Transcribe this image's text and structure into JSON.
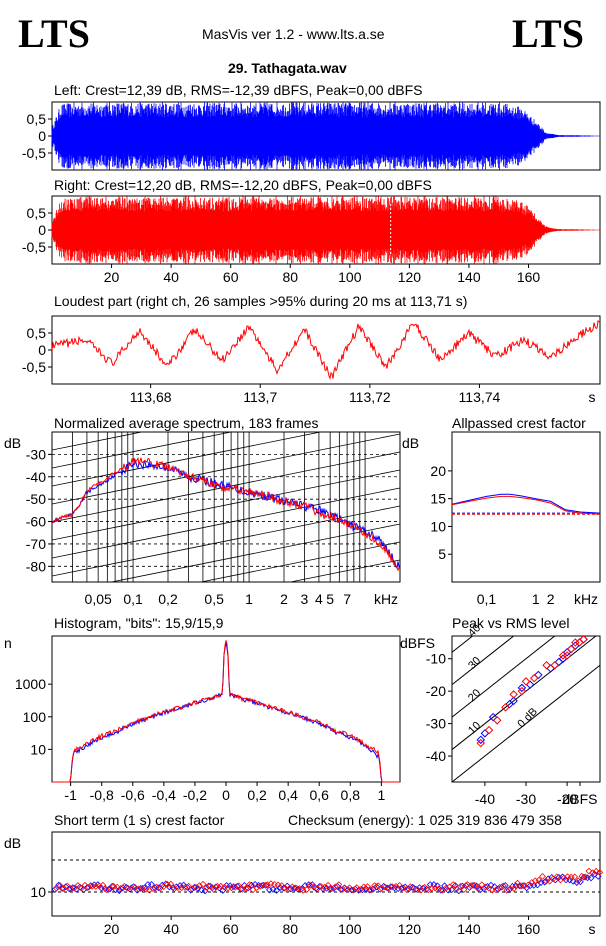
{
  "header": {
    "logo_left": "LTS",
    "logo_right": "LTS",
    "app_title": "MasVis ver 1.2 - www.lts.a.se",
    "file_name": "29. Tathagata.wav"
  },
  "colors": {
    "left": "#0000ff",
    "right": "#ff0000",
    "axis": "#000000"
  },
  "chart_data": [
    {
      "id": "left",
      "type": "area",
      "title": "Left: Crest=12,39 dB, RMS=-12,39 dBFS, Peak=0,00 dBFS",
      "ylabel": "",
      "xlabel": "",
      "yticks": [
        "0,5",
        "0",
        "-0,5"
      ],
      "ylim": [
        -1,
        1
      ],
      "xlim": [
        0,
        184
      ],
      "envelope": {
        "x": [
          0,
          3,
          10,
          30,
          60,
          90,
          120,
          150,
          158,
          163,
          166,
          170,
          184
        ],
        "amp": [
          0.25,
          0.95,
          1,
          1,
          1,
          1,
          1,
          1,
          0.85,
          0.4,
          0.1,
          0.03,
          0.01
        ]
      },
      "series_color": "#0000ff"
    },
    {
      "id": "right",
      "type": "area",
      "title": "Right: Crest=12,20 dB, RMS=-12,20 dBFS, Peak=0,00 dBFS",
      "ylabel": "",
      "xlabel": "s",
      "yticks": [
        "0,5",
        "0",
        "-0,5"
      ],
      "xticks": [
        "20",
        "40",
        "60",
        "80",
        "100",
        "120",
        "140",
        "160"
      ],
      "x_label_values": [
        20,
        40,
        60,
        80,
        100,
        120,
        140,
        160
      ],
      "ylim": [
        -1,
        1
      ],
      "xlim": [
        0,
        184
      ],
      "marker_x": 113.71,
      "envelope": {
        "x": [
          0,
          3,
          10,
          30,
          60,
          90,
          120,
          150,
          158,
          163,
          166,
          170,
          184
        ],
        "amp": [
          0.25,
          0.95,
          1,
          1,
          1,
          1,
          1,
          1,
          0.85,
          0.4,
          0.1,
          0.03,
          0.01
        ]
      },
      "series_color": "#ff0000"
    },
    {
      "id": "loudest",
      "type": "line",
      "title": "Loudest part (right ch, 26 samples >95% during 20 ms at 113,71 s)",
      "yticks": [
        "0,5",
        "0",
        "-0,5"
      ],
      "xticks": [
        "113,68",
        "113,7",
        "113,72",
        "113,74",
        "s"
      ],
      "x_label_values": [
        113.68,
        113.7,
        113.72,
        113.74
      ],
      "xlim": [
        113.662,
        113.762
      ],
      "ylim": [
        -1,
        1
      ],
      "x": [
        113.662,
        113.668,
        113.673,
        113.678,
        113.683,
        113.688,
        113.693,
        113.698,
        113.703,
        113.708,
        113.713,
        113.718,
        113.723,
        113.728,
        113.733,
        113.738,
        113.743,
        113.748,
        113.753,
        113.758,
        113.762
      ],
      "y": [
        0.1,
        0.3,
        -0.4,
        0.6,
        -0.5,
        0.6,
        -0.3,
        0.7,
        -0.6,
        0.6,
        -0.8,
        0.7,
        -0.5,
        0.8,
        -0.3,
        0.5,
        -0.2,
        0.3,
        -0.2,
        0.4,
        0.8
      ],
      "series_color": "#ff0000"
    },
    {
      "id": "spectrum",
      "type": "line",
      "title": "Normalized average spectrum, 183 frames",
      "ylabel": "dB",
      "xlabel": "kHz",
      "yticks": [
        "-30",
        "-40",
        "-50",
        "-60",
        "-70",
        "-80"
      ],
      "y_label_values": [
        -30,
        -40,
        -50,
        -60,
        -70,
        -80
      ],
      "xticks": [
        "0,05",
        "0,1",
        "0,2",
        "0,5",
        "1",
        "2",
        "3",
        "4",
        "5",
        "7",
        "kHz"
      ],
      "x_label_values": [
        0.05,
        0.1,
        0.2,
        0.5,
        1,
        2,
        3,
        4,
        5,
        7
      ],
      "xscale": "log",
      "xlim": [
        0.02,
        20
      ],
      "ylim": [
        -87,
        -20
      ],
      "series": [
        {
          "name": "",
          "color": "#0000ff",
          "x": [
            0.02,
            0.025,
            0.03,
            0.035,
            0.04,
            0.05,
            0.07,
            0.1,
            0.15,
            0.2,
            0.3,
            0.5,
            0.7,
            1,
            1.5,
            2,
            3,
            4,
            5,
            7,
            10,
            13,
            15,
            17,
            20
          ],
          "y": [
            -60,
            -58,
            -57,
            -52,
            -47,
            -44,
            -39,
            -34,
            -35,
            -36,
            -40,
            -43,
            -45,
            -47,
            -49,
            -51,
            -53,
            -55,
            -57,
            -61,
            -64,
            -68,
            -71,
            -76,
            -81
          ]
        },
        {
          "name": "",
          "color": "#ff0000",
          "x": [
            0.02,
            0.025,
            0.03,
            0.035,
            0.04,
            0.05,
            0.07,
            0.1,
            0.15,
            0.2,
            0.3,
            0.5,
            0.7,
            1,
            1.5,
            2,
            3,
            4,
            5,
            7,
            10,
            13,
            15,
            17,
            20
          ],
          "y": [
            -60,
            -58,
            -57,
            -52,
            -46,
            -43,
            -38,
            -33,
            -34,
            -36,
            -40,
            -44,
            -45,
            -47,
            -49,
            -51,
            -53,
            -56,
            -58,
            -61,
            -65,
            -69,
            -72,
            -77,
            -82
          ]
        }
      ]
    },
    {
      "id": "allpassed",
      "type": "line",
      "title": "Allpassed crest factor",
      "ylabel": "dB",
      "xlabel": "kHz",
      "yticks": [
        "20",
        "15",
        "10",
        "5"
      ],
      "y_label_values": [
        20,
        15,
        10,
        5
      ],
      "xticks": [
        "0,1",
        "1",
        "2",
        "kHz"
      ],
      "x_label_values": [
        0.1,
        1,
        2
      ],
      "xscale": "log",
      "xlim": [
        0.02,
        20
      ],
      "ylim": [
        0,
        27
      ],
      "reference_left": 12.4,
      "reference_right": 12.2,
      "series": [
        {
          "name": "",
          "color": "#0000ff",
          "x": [
            0.02,
            0.05,
            0.1,
            0.2,
            0.3,
            0.5,
            1,
            2,
            4,
            8,
            20
          ],
          "y": [
            14,
            14.8,
            15.4,
            15.8,
            15.8,
            15.5,
            15,
            14.5,
            13,
            12.6,
            12.4
          ]
        },
        {
          "name": "",
          "color": "#ff0000",
          "x": [
            0.02,
            0.05,
            0.1,
            0.2,
            0.3,
            0.5,
            1,
            2,
            4,
            8,
            20
          ],
          "y": [
            13.9,
            14.6,
            15.1,
            15.4,
            15.4,
            15.2,
            14.8,
            14.2,
            12.8,
            12.4,
            12.2
          ]
        }
      ]
    },
    {
      "id": "histogram",
      "type": "line",
      "title": "Histogram, \"bits\": 15,9/15,9",
      "ylabel": "n",
      "xlabel": "",
      "yticks": [
        "1000",
        "100",
        "10"
      ],
      "y_label_values": [
        1000,
        100,
        10
      ],
      "xticks": [
        "-1",
        "-0,8",
        "-0,6",
        "-0,4",
        "-0,2",
        "0",
        "0,2",
        "0,4",
        "0,6",
        "0,8",
        "1"
      ],
      "x_label_values": [
        -1,
        -0.8,
        -0.6,
        -0.4,
        -0.2,
        0,
        0.2,
        0.4,
        0.6,
        0.8,
        1
      ],
      "yscale": "log",
      "xlim": [
        -1.12,
        1.12
      ],
      "ylim": [
        1,
        30000
      ],
      "series": [
        {
          "name": "",
          "color": "#0000ff",
          "x": [
            -1,
            -0.98,
            -0.9,
            -0.7,
            -0.5,
            -0.3,
            -0.1,
            -0.02,
            0,
            0.02,
            0.1,
            0.3,
            0.5,
            0.7,
            0.9,
            0.98,
            1
          ],
          "y": [
            1,
            8,
            12,
            35,
            90,
            180,
            350,
            500,
            20000,
            500,
            350,
            180,
            90,
            35,
            12,
            6,
            1
          ]
        },
        {
          "name": "",
          "color": "#ff0000",
          "x": [
            -1,
            -0.98,
            -0.9,
            -0.7,
            -0.5,
            -0.3,
            -0.1,
            -0.02,
            0,
            0.02,
            0.1,
            0.3,
            0.5,
            0.7,
            0.9,
            0.98,
            1
          ],
          "y": [
            1,
            9,
            14,
            38,
            95,
            190,
            360,
            520,
            22000,
            520,
            360,
            190,
            95,
            38,
            14,
            8,
            1
          ]
        }
      ]
    },
    {
      "id": "peak_rms",
      "type": "scatter",
      "title": "Peak vs RMS level",
      "ylabel": "dBFS",
      "xlabel": "dBFS",
      "yticks": [
        "-10",
        "-20",
        "-30",
        "-40"
      ],
      "y_label_values": [
        -10,
        -20,
        -30,
        -40
      ],
      "xticks": [
        "-40",
        "-30",
        "-20",
        "dBFS"
      ],
      "x_label_values": [
        -40,
        -30,
        -20
      ],
      "xlim": [
        -48,
        -12
      ],
      "ylim": [
        -48,
        -3
      ],
      "crest_lines": [
        "40",
        "30",
        "20",
        "10",
        "0 dB"
      ],
      "crest_line_values": [
        40,
        30,
        20,
        10,
        0
      ],
      "series": [
        {
          "name": "",
          "color": "#0000ff",
          "x": [
            -41,
            -40,
            -38,
            -34,
            -33,
            -31,
            -29,
            -27,
            -24,
            -22,
            -21,
            -20,
            -19,
            -18,
            -17,
            -16
          ],
          "y": [
            -35,
            -33,
            -28,
            -24,
            -23,
            -19,
            -18,
            -15,
            -13,
            -11,
            -10,
            -8,
            -7,
            -6,
            -5,
            -4
          ]
        },
        {
          "name": "",
          "color": "#ff0000",
          "x": [
            -41,
            -39,
            -37,
            -35,
            -33,
            -31,
            -30,
            -28,
            -25,
            -23,
            -21,
            -20,
            -19,
            -18,
            -17,
            -16
          ],
          "y": [
            -36,
            -32,
            -29,
            -25,
            -21,
            -20,
            -17,
            -16,
            -12,
            -12,
            -9,
            -9,
            -7,
            -5,
            -5,
            -4
          ]
        }
      ]
    },
    {
      "id": "crest_short",
      "type": "scatter",
      "title": "Short term (1 s) crest factor",
      "checksum": "Checksum (energy):  1 025 319 836 479 358",
      "ylabel": "dB",
      "xlabel": "s",
      "yticks": [
        "10"
      ],
      "y_label_values": [
        10
      ],
      "xticks": [
        "20",
        "40",
        "60",
        "80",
        "100",
        "120",
        "140",
        "160",
        "s"
      ],
      "x_label_values": [
        20,
        40,
        60,
        80,
        100,
        120,
        140,
        160
      ],
      "xlim": [
        0,
        184
      ],
      "ylim": [
        4,
        25
      ],
      "dashed_levels": [
        18,
        10
      ],
      "series": [
        {
          "name": "",
          "color": "#0000ff",
          "x": [
            5,
            15,
            25,
            35,
            45,
            55,
            65,
            75,
            85,
            95,
            105,
            115,
            125,
            135,
            145,
            155,
            162,
            166,
            170,
            174,
            178,
            182
          ],
          "y": [
            11,
            11.2,
            10.8,
            11.5,
            11,
            10.9,
            11.3,
            11,
            11.4,
            10.8,
            11.2,
            11,
            11.3,
            10.9,
            11,
            11.1,
            12,
            13,
            13.5,
            12.5,
            13,
            14
          ]
        },
        {
          "name": "",
          "color": "#ff0000",
          "x": [
            3,
            13,
            23,
            33,
            43,
            53,
            63,
            73,
            83,
            93,
            103,
            113,
            123,
            133,
            143,
            153,
            160,
            164,
            168,
            172,
            176,
            183
          ],
          "y": [
            11.3,
            11,
            11.5,
            11,
            11.6,
            11.2,
            11,
            11.6,
            11,
            11.4,
            11,
            11.5,
            11,
            11.2,
            11.3,
            11,
            12.5,
            13.5,
            12.8,
            14,
            13.2,
            15.5
          ]
        }
      ]
    }
  ]
}
